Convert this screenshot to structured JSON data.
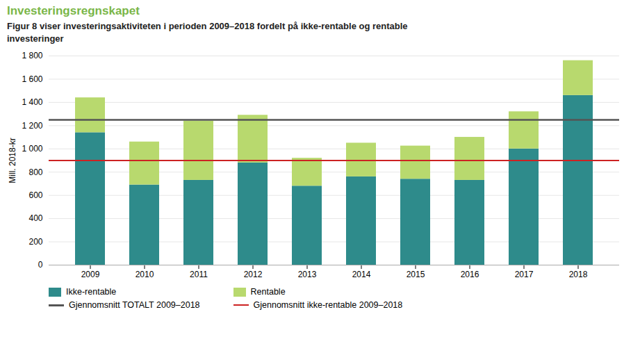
{
  "chart_data": {
    "type": "bar",
    "stacked": true,
    "title": "Investeringsregnskapet",
    "subtitle": "Figur 8 viser investeringsaktiviteten i perioden 2009–2018 fordelt på ikke-rentable og rentable\ninvesteringer",
    "y_label": "Mill. 2018-kr",
    "categories": [
      "2009",
      "2010",
      "2011",
      "2012",
      "2013",
      "2014",
      "2015",
      "2016",
      "2017",
      "2018"
    ],
    "series": [
      {
        "name": "Ikke-rentable",
        "color": "#2e8b8b",
        "values": [
          1140,
          690,
          730,
          880,
          680,
          760,
          740,
          730,
          1000,
          1460
        ]
      },
      {
        "name": "Rentable",
        "color": "#b8d96e",
        "values": [
          300,
          370,
          510,
          410,
          240,
          290,
          285,
          370,
          320,
          300
        ]
      }
    ],
    "reference_lines": [
      {
        "name": "Gjennomsnitt TOTALT 2009–2018",
        "value": 1250,
        "color": "#555555"
      },
      {
        "name": "Gjennomsnitt ikke-rentable 2009–2018",
        "value": 900,
        "color": "#cc2222"
      }
    ],
    "ylim": [
      0,
      1800
    ],
    "yticks": [
      0,
      200,
      400,
      600,
      800,
      {
        "value": 1000,
        "label": "1 000"
      },
      {
        "value": 1200,
        "label": "1 200"
      },
      {
        "value": 1400,
        "label": "1 400"
      },
      {
        "value": 1600,
        "label": "1 600"
      },
      {
        "value": 1800,
        "label": "1 800"
      }
    ],
    "grid": true,
    "legend": "bottom"
  }
}
